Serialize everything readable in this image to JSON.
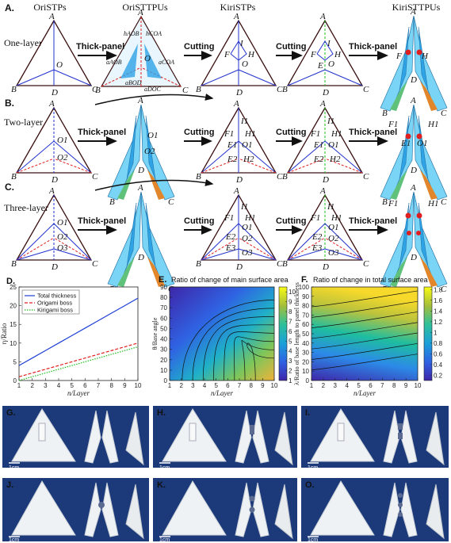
{
  "headers": [
    "OriSTPs",
    "OriSTTPUs",
    "KiriSTPs",
    "KiriSTTPUs"
  ],
  "rows": [
    {
      "label": "A.",
      "sub": "One-layer"
    },
    {
      "label": "B.",
      "sub": "Two-layer"
    },
    {
      "label": "C.",
      "sub": "Three-layer"
    }
  ],
  "steps": {
    "thick": "Thick-panel",
    "cut": "Cutting"
  },
  "vertex_labels": {
    "A": "A",
    "B": "B",
    "C": "C",
    "D": "D",
    "O": "O",
    "I": "I",
    "H": "H",
    "F": "F",
    "E": "E"
  },
  "edge_labels": {
    "h_aob": "hAOB",
    "h_coa": "hCOA",
    "a_aob": "aAOB",
    "a_coa": "aCOA",
    "a_bod": "aBOD",
    "a_doc": "aDOC"
  },
  "layer_labels": {
    "O1": "O1",
    "O2": "O2",
    "O3": "O3",
    "E1": "E1",
    "E2": "E2",
    "E3": "E3",
    "H1": "H1",
    "H2": "H2",
    "H3": "H3",
    "F1": "F1",
    "F2": "F2",
    "F3": "F3",
    "I1": "I1",
    "I2": "I2",
    "I3": "I3"
  },
  "panel_D": {
    "label": "D."
  },
  "panel_E": {
    "label": "E.",
    "title": "Ratio of change of main surface area"
  },
  "panel_F": {
    "label": "F.",
    "title": "Ratio of change in total surface area"
  },
  "photo_labels": [
    "G.",
    "H.",
    "I.",
    "J.",
    "K.",
    "O."
  ],
  "scale_bar": "1cm",
  "colors": {
    "blue_panel": "#2ea3e6",
    "cyan_panel": "#79d4f5",
    "green_panel": "#5fc17a",
    "orange_panel": "#e2862b",
    "photo_bg": "#1c3a7a",
    "red_dash": "#e02020",
    "green_dash": "#18c018"
  },
  "chart_data": [
    {
      "type": "line",
      "panel": "D.",
      "xlabel": "n/Layer",
      "ylabel": "η/Ratio",
      "xlim": [
        1,
        10
      ],
      "ylim": [
        0,
        25
      ],
      "xticks": [
        1,
        2,
        3,
        4,
        5,
        6,
        7,
        8,
        9,
        10
      ],
      "yticks": [
        0,
        5,
        10,
        15,
        20,
        25
      ],
      "legend": "top-left",
      "grid": false,
      "x": [
        1,
        2,
        3,
        4,
        5,
        6,
        7,
        8,
        9,
        10
      ],
      "series": [
        {
          "name": "Total thickness",
          "style": "solid",
          "color": "#1f3fd6",
          "values": [
            4,
            6,
            8,
            10,
            12,
            14,
            16,
            18,
            20,
            22
          ]
        },
        {
          "name": "Origami boss",
          "style": "dashed",
          "color": "#e02020",
          "values": [
            1,
            2,
            3,
            4,
            5,
            6,
            7,
            8,
            9,
            10
          ]
        },
        {
          "name": "Kirigami boss",
          "style": "dotted",
          "color": "#22bb22",
          "values": [
            0,
            1,
            2,
            3,
            4,
            5,
            6,
            7,
            8,
            9
          ]
        }
      ]
    },
    {
      "type": "heatmap",
      "panel": "E.",
      "title": "Ratio of change of main surface area",
      "xlabel": "n/Layer",
      "ylabel": "θ/Base angle",
      "xlim": [
        1,
        10
      ],
      "ylim": [
        0,
        90
      ],
      "xticks": [
        1,
        2,
        3,
        4,
        5,
        6,
        7,
        8,
        9,
        10
      ],
      "yticks": [
        0,
        10,
        20,
        30,
        40,
        50,
        60,
        70,
        80,
        90
      ],
      "colorbar": [
        1,
        2,
        3,
        4,
        5,
        6,
        7,
        8,
        9,
        10
      ],
      "colorbar_range": [
        1,
        10.5
      ]
    },
    {
      "type": "heatmap",
      "panel": "F.",
      "title": "Ratio of change in total surface area",
      "xlabel": "n/Layer",
      "ylabel": "λ/Ratio of base length to panel thickness",
      "xlim": [
        1,
        10
      ],
      "ylim": [
        0,
        100
      ],
      "xticks": [
        1,
        2,
        3,
        4,
        5,
        6,
        7,
        8,
        9,
        10
      ],
      "yticks": [
        0,
        10,
        20,
        30,
        40,
        50,
        60,
        70,
        80,
        90,
        100
      ],
      "colorbar": [
        0.2,
        0.4,
        0.6,
        0.8,
        1,
        1.2,
        1.4,
        1.6,
        1.8
      ],
      "colorbar_range": [
        0.1,
        1.85
      ]
    }
  ]
}
